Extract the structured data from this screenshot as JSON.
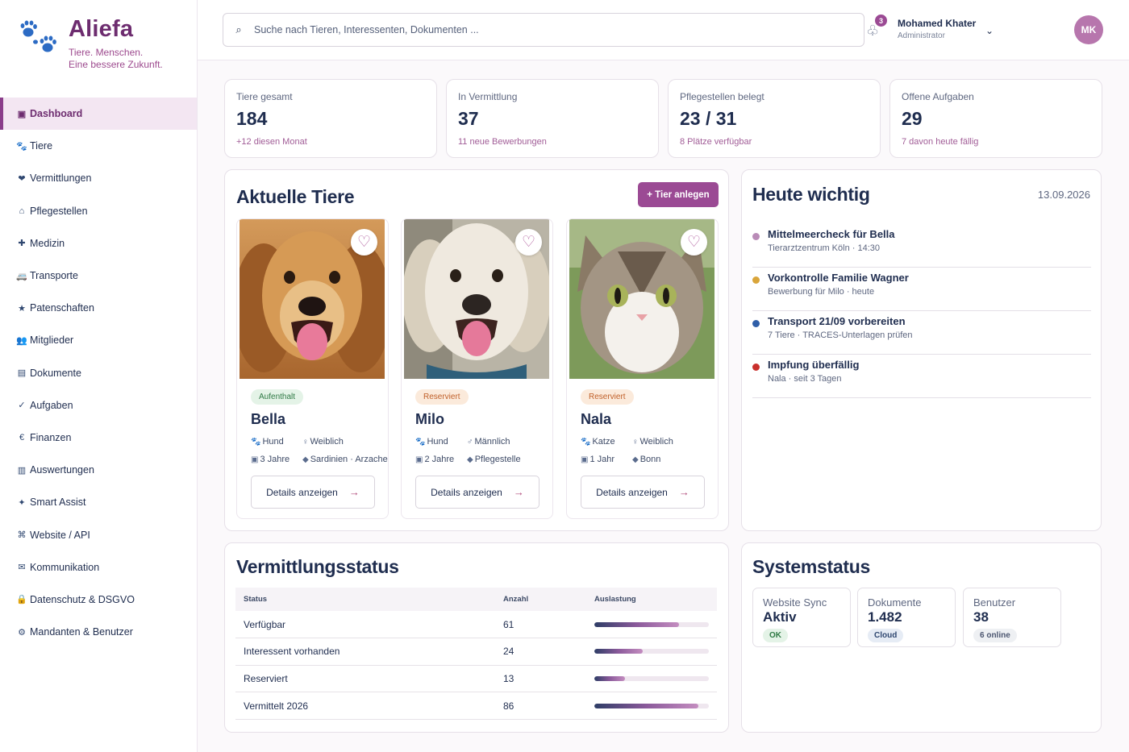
{
  "brand": {
    "name": "Aliefa",
    "tagline_1": "Tiere. Menschen.",
    "tagline_2": "Eine bessere Zukunft.",
    "color": "#6d2c6f",
    "paw_color": "#2c6bc4"
  },
  "sidebar": {
    "items": [
      {
        "label": "Dashboard",
        "icon": "▣",
        "active": true
      },
      {
        "label": "Tiere",
        "icon": "🐾"
      },
      {
        "label": "Vermittlungen",
        "icon": "❤"
      },
      {
        "label": "Pflegestellen",
        "icon": "⌂"
      },
      {
        "label": "Medizin",
        "icon": "✚"
      },
      {
        "label": "Transporte",
        "icon": "🚐"
      },
      {
        "label": "Patenschaften",
        "icon": "★"
      },
      {
        "label": "Mitglieder",
        "icon": "👥"
      },
      {
        "label": "Dokumente",
        "icon": "▤"
      },
      {
        "label": "Aufgaben",
        "icon": "✓"
      },
      {
        "label": "Finanzen",
        "icon": "€"
      },
      {
        "label": "Auswertungen",
        "icon": "▥"
      },
      {
        "label": "Smart Assist",
        "icon": "✦"
      },
      {
        "label": "Website / API",
        "icon": "⌘"
      },
      {
        "label": "Kommunikation",
        "icon": "✉"
      },
      {
        "label": "Datenschutz & DSGVO",
        "icon": "🔒"
      },
      {
        "label": "Mandanten & Benutzer",
        "icon": "⚙"
      }
    ]
  },
  "header": {
    "search_placeholder": "Suche nach Tieren, Interessenten, Dokumenten ...",
    "notification_count": "3",
    "user_name": "Mohamed Khater",
    "user_role": "Administrator",
    "avatar_initials": "MK"
  },
  "kpis": [
    {
      "label": "Tiere gesamt",
      "value": "184",
      "sub": "+12 diesen Monat"
    },
    {
      "label": "In Vermittlung",
      "value": "37",
      "sub": "11 neue Bewerbungen"
    },
    {
      "label": "Pflegestellen belegt",
      "value": "23 / 31",
      "sub": "8 Plätze verfügbar"
    },
    {
      "label": "Offene Aufgaben",
      "value": "29",
      "sub": "7 davon heute fällig"
    }
  ],
  "animals_section": {
    "title": "Aktuelle Tiere",
    "add_button": "+ Tier anlegen",
    "details_label": "Details anzeigen",
    "heart_glyph": "♡",
    "arrow_glyph": "→",
    "animals": [
      {
        "name": "Bella",
        "status": "Aufenthalt",
        "species": "Hund",
        "sex": "Weiblich",
        "age": "3 Jahre",
        "location": "Sardinien · Arzachena",
        "photo": "golden-dog-photo"
      },
      {
        "name": "Milo",
        "status": "Reserviert",
        "species": "Hund",
        "sex": "Männlich",
        "age": "2 Jahre",
        "location": "Pflegestelle",
        "photo": "white-dog-photo"
      },
      {
        "name": "Nala",
        "status": "Reserviert",
        "species": "Katze",
        "sex": "Weiblich",
        "age": "1 Jahr",
        "location": "Bonn",
        "photo": "tabby-cat-photo"
      }
    ]
  },
  "today": {
    "title": "Heute wichtig",
    "date": "13.09.2026",
    "tasks": [
      {
        "title": "Mittelmeercheck für Bella",
        "sub": "Tierarztzentrum Köln · 14:30",
        "color": "#b98bb7"
      },
      {
        "title": "Vorkontrolle Familie Wagner",
        "sub": "Bewerbung für Milo · heute",
        "color": "#d9a53a"
      },
      {
        "title": "Transport 21/09 vorbereiten",
        "sub": "7 Tiere · TRACES-Unterlagen prüfen",
        "color": "#2f5ea8"
      },
      {
        "title": "Impfung überfällig",
        "sub": "Nala · seit 3 Tagen",
        "color": "#c9302c"
      }
    ]
  },
  "adoption_status": {
    "title": "Vermittlungsstatus",
    "headers": {
      "status": "Status",
      "count": "Anzahl",
      "load": "Auslastung"
    },
    "rows": [
      {
        "status": "Verfügbar",
        "count": "61",
        "fill": 0.74
      },
      {
        "status": "Interessent vorhanden",
        "count": "24",
        "fill": 0.42
      },
      {
        "status": "Reserviert",
        "count": "13",
        "fill": 0.27
      },
      {
        "status": "Vermittelt 2026",
        "count": "86",
        "fill": 0.91
      }
    ]
  },
  "system_status": {
    "title": "Systemstatus",
    "boxes": [
      {
        "label": "Website Sync",
        "value": "Aktiv",
        "pill": "OK",
        "pill_style": "green"
      },
      {
        "label": "Dokumente",
        "value": "1.482",
        "pill": "Cloud",
        "pill_style": "blue"
      },
      {
        "label": "Benutzer",
        "value": "38",
        "pill": "6 online",
        "pill_style": "gray"
      }
    ]
  }
}
